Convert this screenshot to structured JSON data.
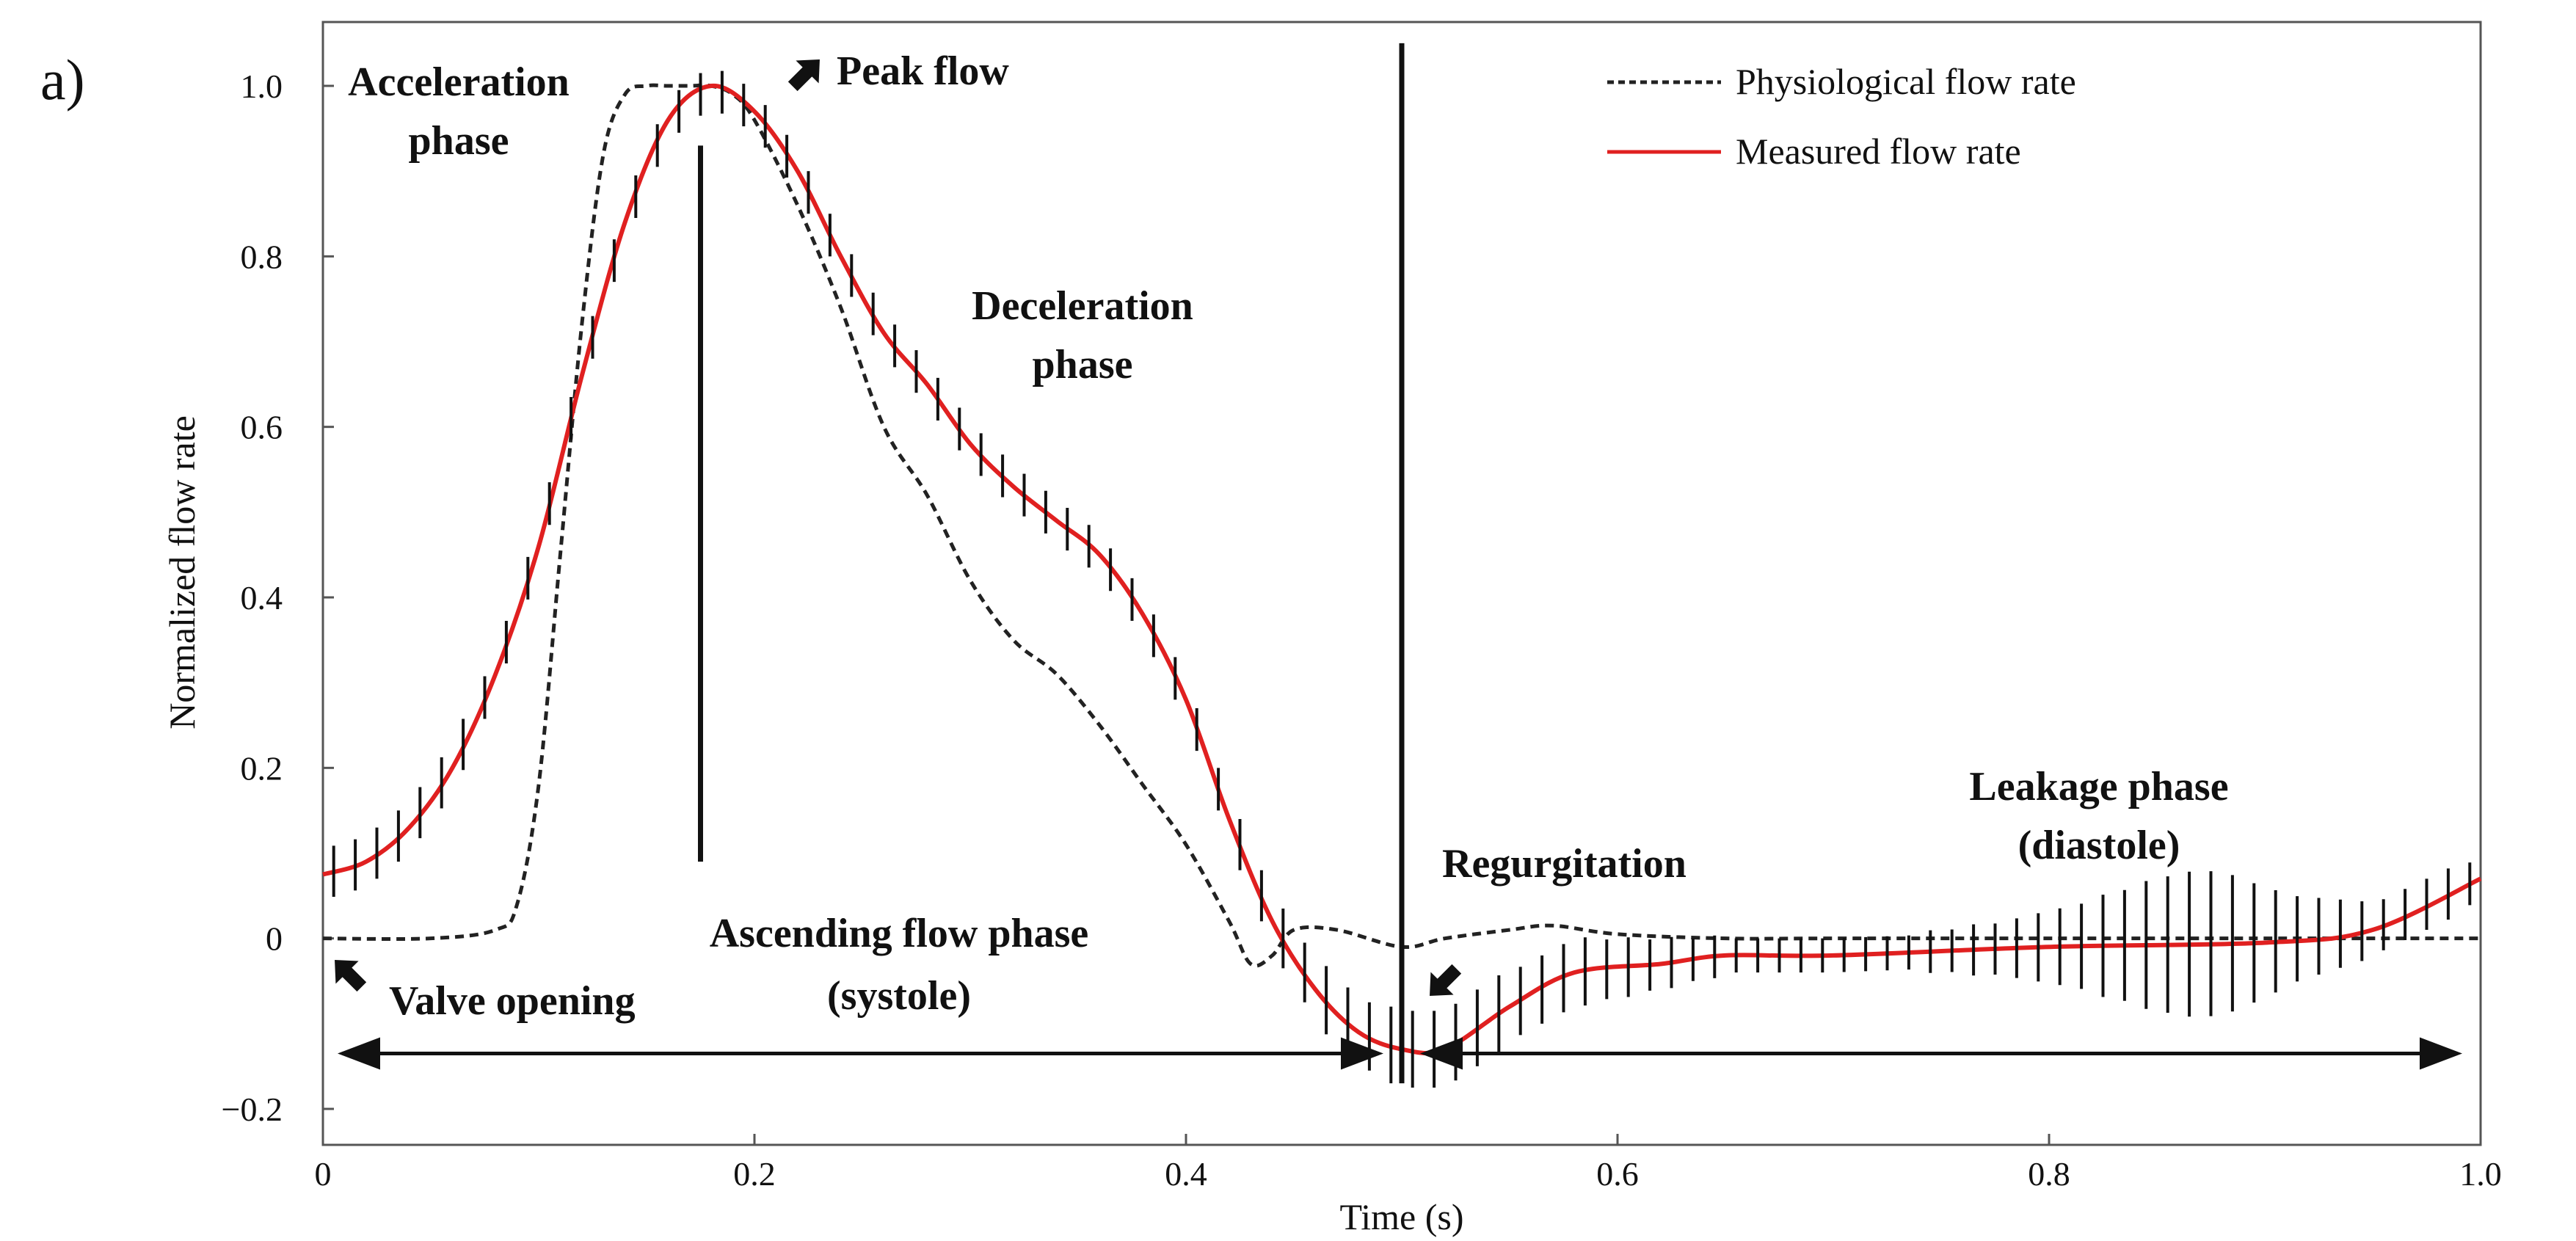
{
  "panel_label": "a)",
  "chart_data": {
    "type": "line",
    "xlabel": "Time (s)",
    "ylabel": "Normalized flow rate",
    "xlim": [
      0,
      1.0
    ],
    "ylim": [
      -0.2,
      1.05
    ],
    "x_ticks": [
      0,
      0.2,
      0.4,
      0.6,
      0.8,
      1.0
    ],
    "x_tick_labels": [
      "0",
      "0.2",
      "0.4",
      "0.6",
      "0.8",
      "1.0"
    ],
    "y_ticks": [
      -0.2,
      0,
      0.2,
      0.4,
      0.6,
      0.8,
      1.0
    ],
    "y_tick_labels": [
      "−0.2",
      "0",
      "0.2",
      "0.4",
      "0.6",
      "0.8",
      "1.0"
    ],
    "legend_position": "top-right",
    "series": [
      {
        "name": "Physiological flow rate",
        "style": "dashed",
        "color": "#222222",
        "x": [
          0,
          0.05,
          0.08,
          0.09,
          0.1,
          0.11,
          0.12,
          0.13,
          0.14,
          0.15,
          0.16,
          0.17,
          0.18,
          0.19,
          0.2,
          0.22,
          0.24,
          0.26,
          0.28,
          0.3,
          0.32,
          0.34,
          0.36,
          0.38,
          0.4,
          0.42,
          0.43,
          0.44,
          0.45,
          0.47,
          0.5,
          0.52,
          0.55,
          0.57,
          0.6,
          0.65,
          0.7,
          0.8,
          0.9,
          1.0
        ],
        "y": [
          0,
          0.0,
          0.01,
          0.04,
          0.18,
          0.45,
          0.72,
          0.92,
          0.99,
          1.0,
          1.0,
          1.0,
          1.0,
          0.99,
          0.96,
          0.86,
          0.74,
          0.6,
          0.52,
          0.42,
          0.35,
          0.31,
          0.25,
          0.18,
          0.11,
          0.02,
          -0.03,
          -0.02,
          0.01,
          0.01,
          -0.01,
          0.0,
          0.01,
          0.015,
          0.005,
          0.0,
          0.0,
          0.0,
          0.0,
          0.0
        ]
      },
      {
        "name": "Measured flow rate",
        "style": "solid",
        "color": "#e02020",
        "x": [
          0,
          0.02,
          0.04,
          0.06,
          0.08,
          0.1,
          0.12,
          0.14,
          0.16,
          0.18,
          0.2,
          0.22,
          0.24,
          0.26,
          0.28,
          0.3,
          0.32,
          0.34,
          0.36,
          0.38,
          0.4,
          0.42,
          0.44,
          0.46,
          0.48,
          0.5,
          0.52,
          0.55,
          0.58,
          0.62,
          0.65,
          0.7,
          0.8,
          0.9,
          0.95,
          1.0
        ],
        "y": [
          0.075,
          0.09,
          0.13,
          0.2,
          0.31,
          0.46,
          0.66,
          0.84,
          0.96,
          1.0,
          0.97,
          0.9,
          0.8,
          0.71,
          0.65,
          0.58,
          0.53,
          0.49,
          0.45,
          0.38,
          0.28,
          0.14,
          0.02,
          -0.06,
          -0.11,
          -0.13,
          -0.13,
          -0.08,
          -0.04,
          -0.03,
          -0.02,
          -0.02,
          -0.01,
          -0.005,
          0.01,
          0.07
        ]
      }
    ],
    "error_bars": {
      "series": "Measured flow rate",
      "x": [
        0.005,
        0.015,
        0.025,
        0.035,
        0.045,
        0.055,
        0.065,
        0.075,
        0.085,
        0.095,
        0.105,
        0.115,
        0.125,
        0.135,
        0.145,
        0.155,
        0.165,
        0.175,
        0.185,
        0.195,
        0.205,
        0.215,
        0.225,
        0.235,
        0.245,
        0.255,
        0.265,
        0.275,
        0.285,
        0.295,
        0.305,
        0.315,
        0.325,
        0.335,
        0.345,
        0.355,
        0.365,
        0.375,
        0.385,
        0.395,
        0.405,
        0.415,
        0.425,
        0.435,
        0.445,
        0.455,
        0.465,
        0.475,
        0.485,
        0.495,
        0.505,
        0.515,
        0.525,
        0.535,
        0.545,
        0.555,
        0.565,
        0.575,
        0.585,
        0.595,
        0.605,
        0.615,
        0.625,
        0.635,
        0.645,
        0.655,
        0.665,
        0.675,
        0.685,
        0.695,
        0.705,
        0.715,
        0.725,
        0.735,
        0.745,
        0.755,
        0.765,
        0.775,
        0.785,
        0.795,
        0.805,
        0.815,
        0.825,
        0.835,
        0.845,
        0.855,
        0.865,
        0.875,
        0.885,
        0.895,
        0.905,
        0.915,
        0.925,
        0.935,
        0.945,
        0.955,
        0.965,
        0.975,
        0.985,
        0.995
      ],
      "half_width": [
        0.03,
        0.03,
        0.03,
        0.03,
        0.03,
        0.03,
        0.03,
        0.025,
        0.025,
        0.025,
        0.025,
        0.025,
        0.025,
        0.025,
        0.025,
        0.025,
        0.025,
        0.025,
        0.025,
        0.025,
        0.025,
        0.025,
        0.025,
        0.025,
        0.025,
        0.025,
        0.025,
        0.025,
        0.025,
        0.025,
        0.025,
        0.025,
        0.025,
        0.025,
        0.025,
        0.025,
        0.025,
        0.025,
        0.025,
        0.025,
        0.025,
        0.025,
        0.03,
        0.03,
        0.035,
        0.035,
        0.04,
        0.04,
        0.04,
        0.045,
        0.045,
        0.045,
        0.045,
        0.045,
        0.045,
        0.04,
        0.04,
        0.04,
        0.04,
        0.035,
        0.035,
        0.03,
        0.03,
        0.025,
        0.025,
        0.02,
        0.02,
        0.02,
        0.02,
        0.02,
        0.02,
        0.02,
        0.02,
        0.02,
        0.025,
        0.025,
        0.03,
        0.03,
        0.035,
        0.04,
        0.045,
        0.05,
        0.06,
        0.065,
        0.075,
        0.08,
        0.085,
        0.085,
        0.08,
        0.07,
        0.06,
        0.05,
        0.045,
        0.04,
        0.035,
        0.03,
        0.03,
        0.03,
        0.03,
        0.025
      ]
    },
    "annotations": {
      "acceleration": [
        "Acceleration",
        "phase"
      ],
      "peak_flow": "Peak flow",
      "deceleration": [
        "Deceleration",
        "phase"
      ],
      "ascending": [
        "Ascending flow phase",
        "(systole)"
      ],
      "valve_opening": "Valve opening",
      "regurgitation": "Regurgitation",
      "leakage": [
        "Leakage phase",
        "(diastole)"
      ]
    },
    "markers": {
      "peak_line_x": 0.175,
      "peak_line_y": [
        0.09,
        0.93
      ],
      "end_systole_x": 0.5,
      "end_systole_y": [
        -0.17,
        1.05
      ],
      "systole_arrow": {
        "from": 0.0,
        "to": 0.5,
        "y": -0.135
      },
      "diastole_arrow": {
        "from": 0.5,
        "to": 1.0,
        "y": -0.135
      }
    }
  }
}
